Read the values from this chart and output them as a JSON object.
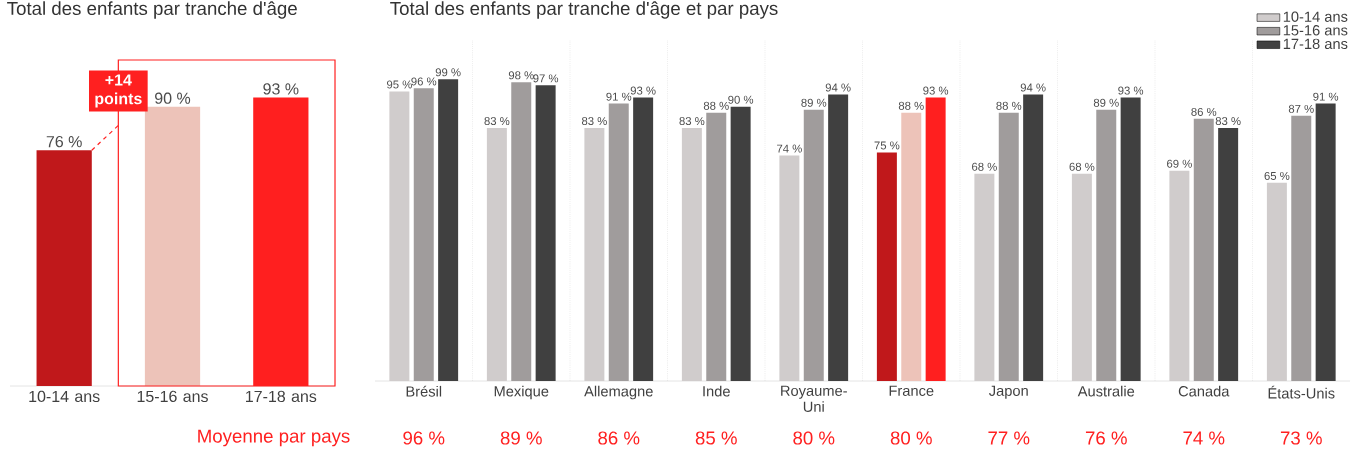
{
  "chart_data": [
    {
      "type": "bar",
      "title": "Total des enfants par tranche d'âge",
      "categories": [
        "10-14 ans",
        "15-16 ans",
        "17-18 ans"
      ],
      "values": [
        76,
        90,
        93
      ],
      "colors": [
        "#c0181b",
        "#edc3b9",
        "#ff1f1f"
      ],
      "value_labels": [
        "76 %",
        "90 %",
        "93 %"
      ],
      "annotations": [
        "**+14** points"
      ]
    },
    {
      "type": "bar",
      "title": "Total des enfants par tranche d'âge et par pays",
      "categories": [
        "Brésil",
        "Mexique",
        "Allemagne",
        "Inde",
        "Royaume-Uni",
        "France",
        "Japon",
        "Australie",
        "Canada",
        "États-Unis"
      ],
      "series": [
        {
          "name": "10-14 ans",
          "values": [
            95,
            83,
            83,
            83,
            74,
            75,
            68,
            68,
            69,
            65
          ],
          "colors": [
            "#d0cccc",
            "#d0cccc",
            "#d0cccc",
            "#d0cccc",
            "#d0cccc",
            "#c0181b",
            "#d0cccc",
            "#d0cccc",
            "#d0cccc",
            "#d0cccc"
          ],
          "value_labels": [
            "95 %",
            "83 %",
            "83 %",
            "83 %",
            "74 %",
            "75 %",
            "68 %",
            "68 %",
            "69 %",
            "65 %"
          ]
        },
        {
          "name": "15-16 ans",
          "values": [
            96,
            98,
            91,
            88,
            89,
            88,
            88,
            89,
            86,
            87
          ],
          "colors": [
            "#a09c9c",
            "#a09c9c",
            "#a09c9c",
            "#a09c9c",
            "#a09c9c",
            "#edc3b9",
            "#a09c9c",
            "#a09c9c",
            "#a09c9c",
            "#a09c9c"
          ],
          "value_labels": [
            "96 %",
            "98 %",
            "91 %",
            "88 %",
            "89 %",
            "88 %",
            "88 %",
            "89 %",
            "86 %",
            "87 %"
          ]
        },
        {
          "name": "17-18 ans",
          "values": [
            99,
            97,
            93,
            90,
            94,
            93,
            94,
            93,
            83,
            91
          ],
          "colors": [
            "#404040",
            "#404040",
            "#404040",
            "#404040",
            "#404040",
            "#ff1f1f",
            "#404040",
            "#404040",
            "#404040",
            "#404040"
          ],
          "value_labels": [
            "99 %",
            "97 %",
            "93 %",
            "90 %",
            "94 %",
            "93 %",
            "94 %",
            "93 %",
            "83 %",
            "91 %"
          ]
        }
      ],
      "legend": "top right",
      "grid": "x",
      "annotations": [
        "Moyenne par pays",
        "96 %",
        "89 %",
        "86 %",
        "85 %",
        "80 %",
        "80 %",
        "77 %",
        "76 %",
        "74 %",
        "73 %"
      ]
    }
  ]
}
